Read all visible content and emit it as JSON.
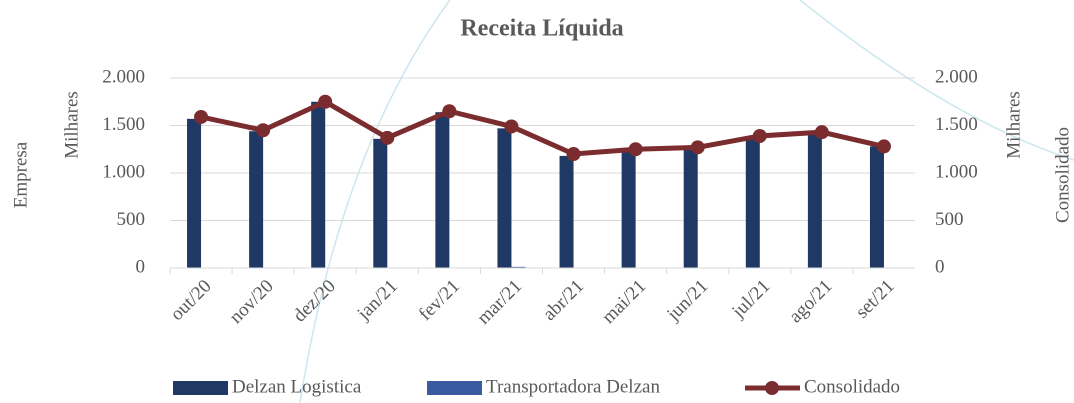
{
  "chart_data": {
    "type": "bar",
    "title": "Receita Líquida",
    "ylabel": [
      "Empresa",
      "Milhares"
    ],
    "y2label": [
      "Milhares",
      "Consolidado"
    ],
    "categories": [
      "out/20",
      "nov/20",
      "dez/20",
      "jan/21",
      "fev/21",
      "mar/21",
      "abr/21",
      "mai/21",
      "jun/21",
      "jul/21",
      "ago/21",
      "set/21"
    ],
    "series": [
      {
        "name": "Delzan Logistica",
        "type": "bar",
        "color": "#203864",
        "values": [
          1570,
          1440,
          1750,
          1360,
          1640,
          1470,
          1180,
          1240,
          1260,
          1370,
          1420,
          1280
        ]
      },
      {
        "name": "Transportadora Delzan",
        "type": "bar",
        "color": "#3a5ba0",
        "values": [
          0,
          0,
          0,
          0,
          0,
          12,
          0,
          0,
          0,
          0,
          0,
          0
        ]
      },
      {
        "name": "Consolidado",
        "type": "line",
        "axis": "y2",
        "color": "#7b2c2f",
        "values": [
          1590,
          1450,
          1750,
          1370,
          1650,
          1490,
          1200,
          1250,
          1270,
          1390,
          1430,
          1280
        ]
      }
    ],
    "ylim": [
      0,
      2000
    ],
    "yticks": [
      0,
      500,
      {
        "value": 1000,
        "label": "1.000"
      },
      {
        "value": 1500,
        "label": "1.500"
      },
      {
        "value": 2000,
        "label": "2.000"
      }
    ],
    "y2lim": [
      0,
      2000
    ],
    "y2ticks": [
      0,
      500,
      {
        "value": 1000,
        "label": "1.000"
      },
      {
        "value": 1500,
        "label": "1.500"
      },
      {
        "value": 2000,
        "label": "2.000"
      }
    ],
    "legend": "bottom"
  }
}
